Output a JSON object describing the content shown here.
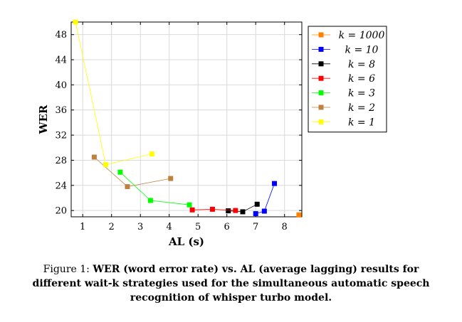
{
  "chart_data": {
    "type": "line",
    "title": "",
    "xlabel": "AL (s)",
    "ylabel": "WER",
    "xlim": [
      0.6,
      8.6
    ],
    "ylim": [
      19,
      50
    ],
    "xticks": [
      "1",
      "2",
      "3",
      "4",
      "5",
      "6",
      "7",
      "8"
    ],
    "yticks": [
      "20",
      "24",
      "28",
      "32",
      "36",
      "40",
      "44",
      "48"
    ],
    "grid": true,
    "legend": "outside-right",
    "series": [
      {
        "name": "k = 1000",
        "color": "#ff8000",
        "x": [
          8.5
        ],
        "y": [
          19.3
        ]
      },
      {
        "name": "k = 10",
        "color": "#0000ff",
        "x": [
          7.0,
          7.3,
          7.65
        ],
        "y": [
          19.5,
          19.9,
          24.3
        ]
      },
      {
        "name": "k = 8",
        "color": "#000000",
        "x": [
          6.05,
          6.55,
          7.05
        ],
        "y": [
          19.95,
          19.8,
          21.0
        ]
      },
      {
        "name": "k = 6",
        "color": "#ff0000",
        "x": [
          4.8,
          5.5,
          6.3
        ],
        "y": [
          20.1,
          20.2,
          20.0
        ]
      },
      {
        "name": "k = 3",
        "color": "#00ff00",
        "x": [
          2.3,
          3.35,
          4.7
        ],
        "y": [
          26.1,
          21.6,
          20.9
        ]
      },
      {
        "name": "k = 2",
        "color": "#bf8040",
        "x": [
          1.4,
          2.55,
          4.05
        ],
        "y": [
          28.5,
          23.8,
          25.1
        ]
      },
      {
        "name": "k = 1",
        "color": "#ffff00",
        "x": [
          0.75,
          1.8,
          3.4
        ],
        "y": [
          50.0,
          27.3,
          29.0
        ]
      }
    ]
  },
  "caption": {
    "prefix": "Figure 1: ",
    "text": "WER (word error rate) vs. AL (average lagging) results for different wait-k strategies used for the simultaneous automatic speech recognition of whisper turbo model."
  }
}
